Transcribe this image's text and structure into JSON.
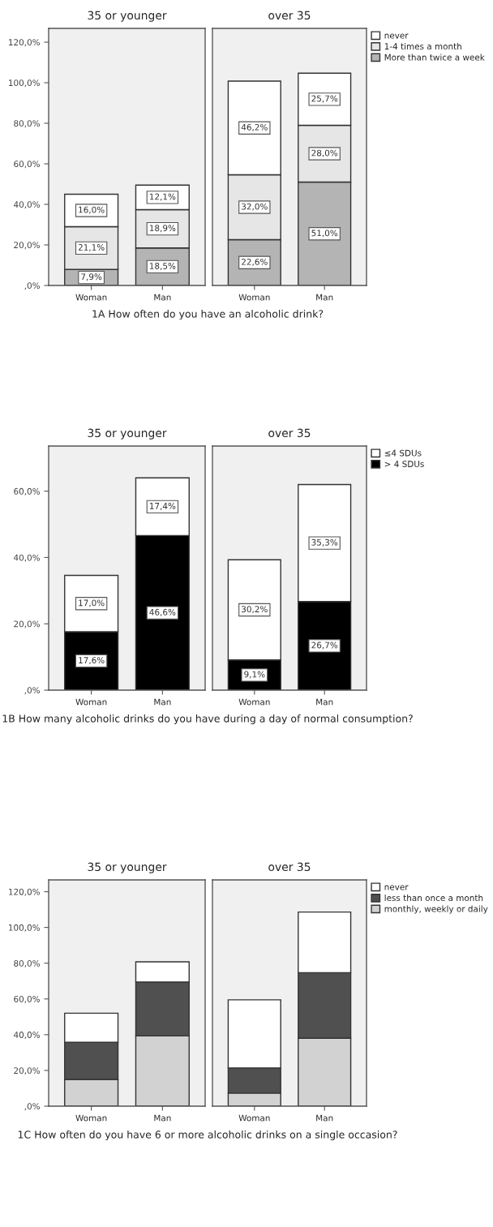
{
  "chart_data": [
    {
      "type": "bar",
      "stacked": true,
      "title": "35 or younger",
      "categories": [
        "Woman",
        "Man"
      ],
      "xlabel": "1A How often do you have an alcoholic drink?",
      "ylim": [
        0,
        126.8
      ],
      "yticks": [
        {
          "value": 0,
          "label": ",0%"
        },
        {
          "value": 20,
          "label": "20,0%"
        },
        {
          "value": 40,
          "label": "40,0%"
        },
        {
          "value": 60,
          "label": "60,0%"
        },
        {
          "value": 80,
          "label": "80,0%"
        },
        {
          "value": 100,
          "label": "100,0%"
        },
        {
          "value": 120,
          "label": "120,0%"
        }
      ],
      "legend": false,
      "series": [
        {
          "color": "#b4b4b4",
          "values": [
            7.9,
            18.5
          ],
          "value_labels": [
            "7,9%",
            "18,5%"
          ]
        },
        {
          "color": "#e6e6e6",
          "values": [
            21.1,
            18.9
          ],
          "value_labels": [
            "21,1%",
            "18,9%"
          ]
        },
        {
          "color": "#ffffff",
          "values": [
            16.0,
            12.1
          ],
          "value_labels": [
            "16,0%",
            "12,1%"
          ]
        }
      ]
    },
    {
      "type": "bar",
      "stacked": true,
      "title": "over 35",
      "categories": [
        "Woman",
        "Man"
      ],
      "ylim": [
        0,
        126.8
      ],
      "tick_labels": "x",
      "legend": "right",
      "series": [
        {
          "name": "More than twice a week",
          "color": "#b4b4b4",
          "values": [
            22.6,
            51.0
          ],
          "value_labels": [
            "22,6%",
            "51,0%"
          ]
        },
        {
          "name": "1-4 times a month",
          "color": "#e6e6e6",
          "values": [
            32.0,
            28.0
          ],
          "value_labels": [
            "32,0%",
            "28,0%"
          ]
        },
        {
          "name": "never",
          "color": "#ffffff",
          "values": [
            46.2,
            25.7
          ],
          "value_labels": [
            "46,2%",
            "25,7%"
          ]
        }
      ]
    },
    {
      "type": "bar",
      "stacked": true,
      "title": "35 or younger",
      "categories": [
        "Woman",
        "Man"
      ],
      "xlabel": "1B How many alcoholic drinks do you have during a day of normal consumption?",
      "ylim": [
        0,
        73.6
      ],
      "yticks": [
        {
          "value": 0,
          "label": ",0%"
        },
        {
          "value": 20,
          "label": "20,0%"
        },
        {
          "value": 40,
          "label": "40,0%"
        },
        {
          "value": 60,
          "label": "60,0%"
        }
      ],
      "legend": false,
      "series": [
        {
          "color": "#000000",
          "values": [
            17.6,
            46.6
          ],
          "value_labels": [
            "17,6%",
            "46,6%"
          ]
        },
        {
          "color": "#ffffff",
          "values": [
            17.0,
            17.4
          ],
          "value_labels": [
            "17,0%",
            "17,4%"
          ]
        }
      ]
    },
    {
      "type": "bar",
      "stacked": true,
      "title": "over 35",
      "categories": [
        "Woman",
        "Man"
      ],
      "ylim": [
        0,
        73.6
      ],
      "tick_labels": "x",
      "legend": "right",
      "series": [
        {
          "name": "> 4 SDUs",
          "color": "#000000",
          "values": [
            9.1,
            26.7
          ],
          "value_labels": [
            "9,1%",
            "26,7%"
          ]
        },
        {
          "name": "≤4 SDUs",
          "color": "#ffffff",
          "values": [
            30.2,
            35.3
          ],
          "value_labels": [
            "30,2%",
            "35,3%"
          ]
        }
      ]
    },
    {
      "type": "bar",
      "stacked": true,
      "title": "35 or younger",
      "categories": [
        "Woman",
        "Man"
      ],
      "xlabel": "1C How often do you have 6 or more alcoholic drinks on a single occasion?",
      "ylim": [
        0,
        126.6
      ],
      "yticks": [
        {
          "value": 0,
          "label": ",0%"
        },
        {
          "value": 20,
          "label": "20,0%"
        },
        {
          "value": 40,
          "label": "40,0%"
        },
        {
          "value": 60,
          "label": "60,0%"
        },
        {
          "value": 80,
          "label": "80,0%"
        },
        {
          "value": 100,
          "label": "100,0%"
        },
        {
          "value": 120,
          "label": "120,0%"
        }
      ],
      "legend": false,
      "series": [
        {
          "color": "#d2d2d2",
          "values": [
            15.0,
            39.3
          ]
        },
        {
          "color": "#505050",
          "values": [
            20.8,
            30.2
          ]
        },
        {
          "color": "#ffffff",
          "values": [
            16.2,
            11.3
          ]
        }
      ]
    },
    {
      "type": "bar",
      "stacked": true,
      "title": "over 35",
      "categories": [
        "Woman",
        "Man"
      ],
      "ylim": [
        0,
        126.6
      ],
      "tick_labels": "x",
      "legend": "right",
      "series": [
        {
          "name": "monthly, weekly or daily",
          "color": "#d2d2d2",
          "values": [
            7.3,
            38.0
          ]
        },
        {
          "name": "less than once a month",
          "color": "#505050",
          "values": [
            14.1,
            36.7
          ]
        },
        {
          "name": "never",
          "color": "#ffffff",
          "values": [
            38.1,
            33.9
          ]
        }
      ]
    }
  ]
}
